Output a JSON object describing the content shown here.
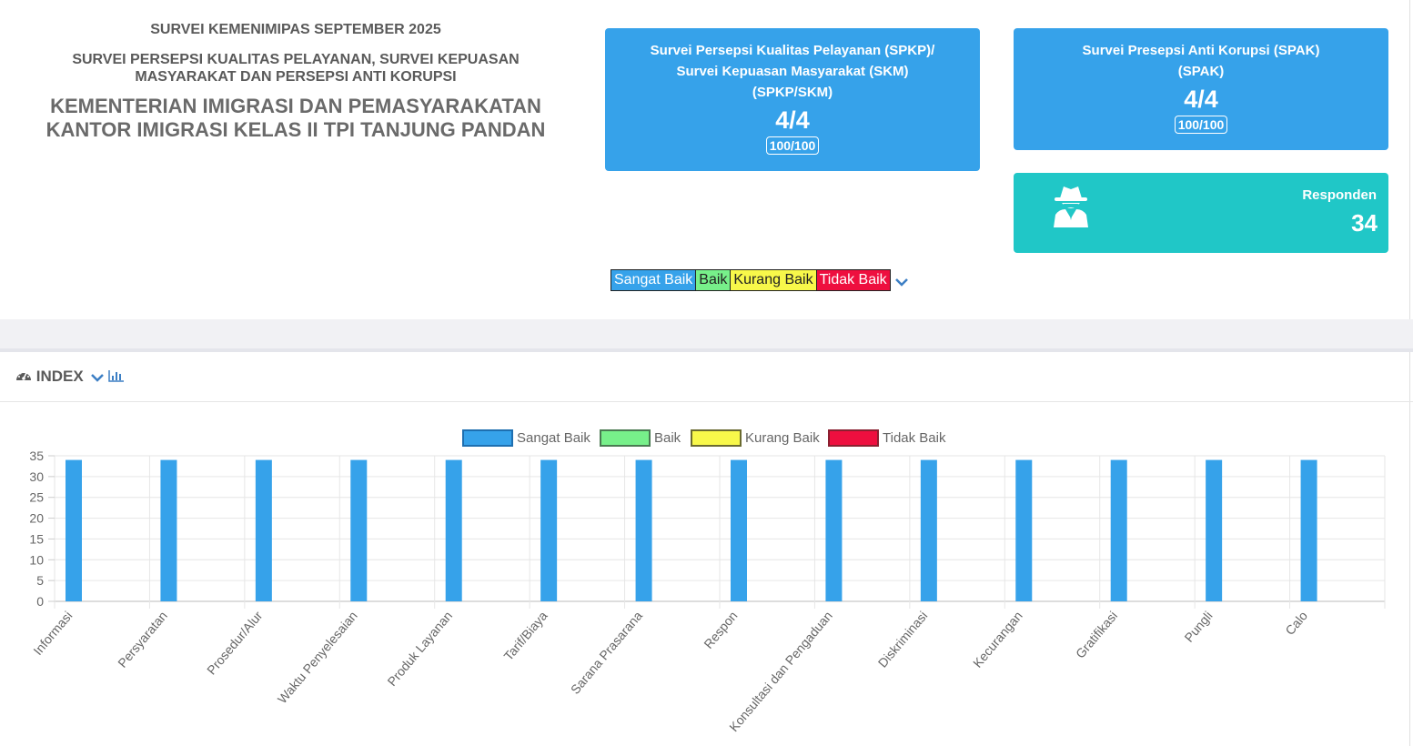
{
  "header": {
    "line1": "SURVEI KEMENIMIPAS SEPTEMBER 2025",
    "line2a": "SURVEI PERSEPSI KUALITAS PELAYANAN, SURVEI KEPUASAN",
    "line2b": "MASYARAKAT DAN PERSEPSI ANTI KORUPSI",
    "line3a": "KEMENTERIAN IMIGRASI DAN PEMASYARAKATAN",
    "line3b": "KANTOR IMIGRASI KELAS II TPI TANJUNG PANDAN"
  },
  "cards": {
    "spkp": {
      "title1": "Survei Persepsi Kualitas Pelayanan (SPKP)/",
      "title2": "Survei Kepuasan Masyarakat (SKM)",
      "title3": "(SPKP/SKM)",
      "value": "4/4",
      "badge": "100/100"
    },
    "spak": {
      "title1": "Survei Presepsi Anti Korupsi (SPAK)",
      "title2": "(SPAK)",
      "value": "4/4",
      "badge": "100/100"
    },
    "responden": {
      "label": "Responden",
      "value": "34",
      "icon": "user-secret-icon"
    }
  },
  "legend_bar": [
    {
      "label": "Sangat Baik",
      "bg": "#36a2ea",
      "fg": "#ffffff"
    },
    {
      "label": "Baik",
      "bg": "#77f08a",
      "fg": "#222222"
    },
    {
      "label": "Kurang Baik",
      "bg": "#f8f84a",
      "fg": "#222222"
    },
    {
      "label": "Tidak Baik",
      "bg": "#ee0f3f",
      "fg": "#ffffff"
    }
  ],
  "panel": {
    "title": "INDEX"
  },
  "chart_data": {
    "type": "bar",
    "categories": [
      "Informasi",
      "Persyaratan",
      "Prosedur/Alur",
      "Waktu Penyelesaian",
      "Produk Layanan",
      "Tarif/Biaya",
      "Sarana Prasarana",
      "Respon",
      "Konsultasi dan Pengaduan",
      "Diskriminasi",
      "Kecurangan",
      "Gratifikasi",
      "Pungli",
      "Calo"
    ],
    "series": [
      {
        "name": "Sangat Baik",
        "color": "#36a2ea",
        "border": "#1e6fb0",
        "values": [
          34,
          34,
          34,
          34,
          34,
          34,
          34,
          34,
          34,
          34,
          34,
          34,
          34,
          34
        ]
      },
      {
        "name": "Baik",
        "color": "#77f08a",
        "border": "#4a7a52",
        "values": [
          0,
          0,
          0,
          0,
          0,
          0,
          0,
          0,
          0,
          0,
          0,
          0,
          0,
          0
        ]
      },
      {
        "name": "Kurang Baik",
        "color": "#f8f84a",
        "border": "#6a6a30",
        "values": [
          0,
          0,
          0,
          0,
          0,
          0,
          0,
          0,
          0,
          0,
          0,
          0,
          0,
          0
        ]
      },
      {
        "name": "Tidak Baik",
        "color": "#ee0f3f",
        "border": "#8a2030",
        "values": [
          0,
          0,
          0,
          0,
          0,
          0,
          0,
          0,
          0,
          0,
          0,
          0,
          0,
          0
        ]
      }
    ],
    "yticks": [
      0,
      5,
      10,
      15,
      20,
      25,
      30,
      35
    ],
    "ylim": [
      0,
      35
    ],
    "grid": true,
    "legend": "top"
  }
}
